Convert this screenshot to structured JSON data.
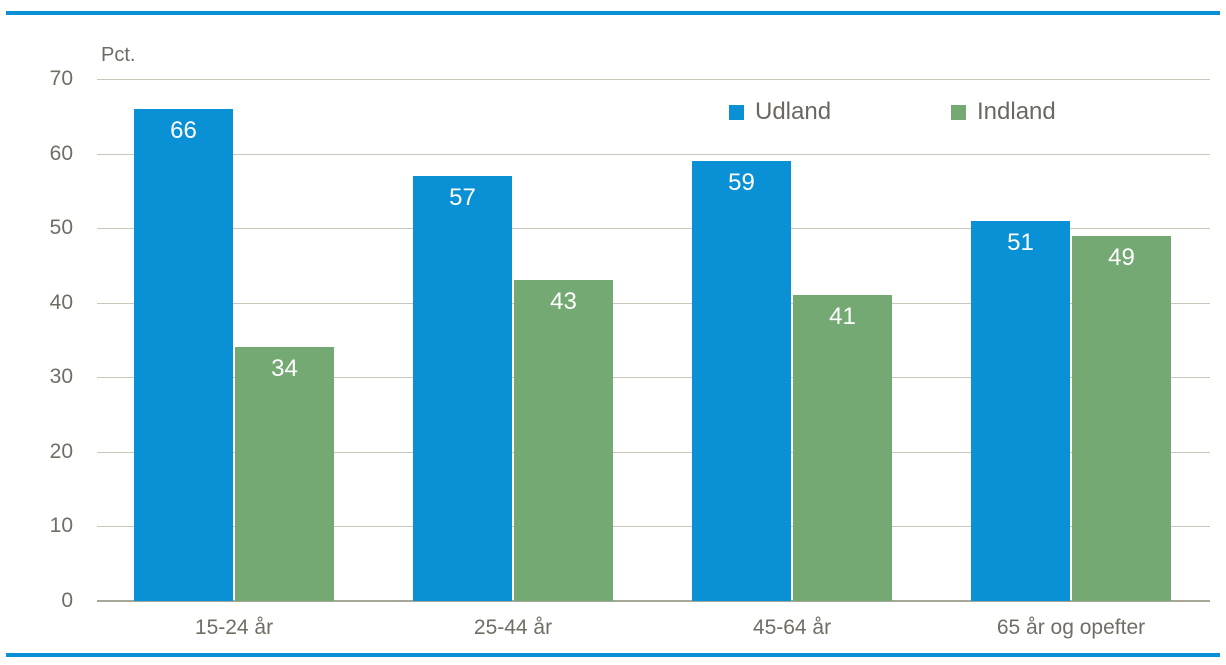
{
  "frame": {
    "accent_color": "#0990d5"
  },
  "chart_data": {
    "type": "bar",
    "title": "",
    "ylabel": "Pct.",
    "xlabel": "",
    "categories": [
      "15-24 år",
      "25-44 år",
      "45-64 år",
      "65 år og opefter"
    ],
    "series": [
      {
        "name": "Udland",
        "color": "#0990d5",
        "values": [
          66,
          57,
          59,
          51
        ]
      },
      {
        "name": "Indland",
        "color": "#74a973",
        "values": [
          34,
          43,
          41,
          49
        ]
      }
    ],
    "ylim": [
      0,
      70
    ],
    "yticks": [
      0,
      10,
      20,
      30,
      40,
      50,
      60,
      70
    ],
    "grid": true,
    "legend_position": "top-right",
    "bar_label_color": "#ffffff"
  }
}
